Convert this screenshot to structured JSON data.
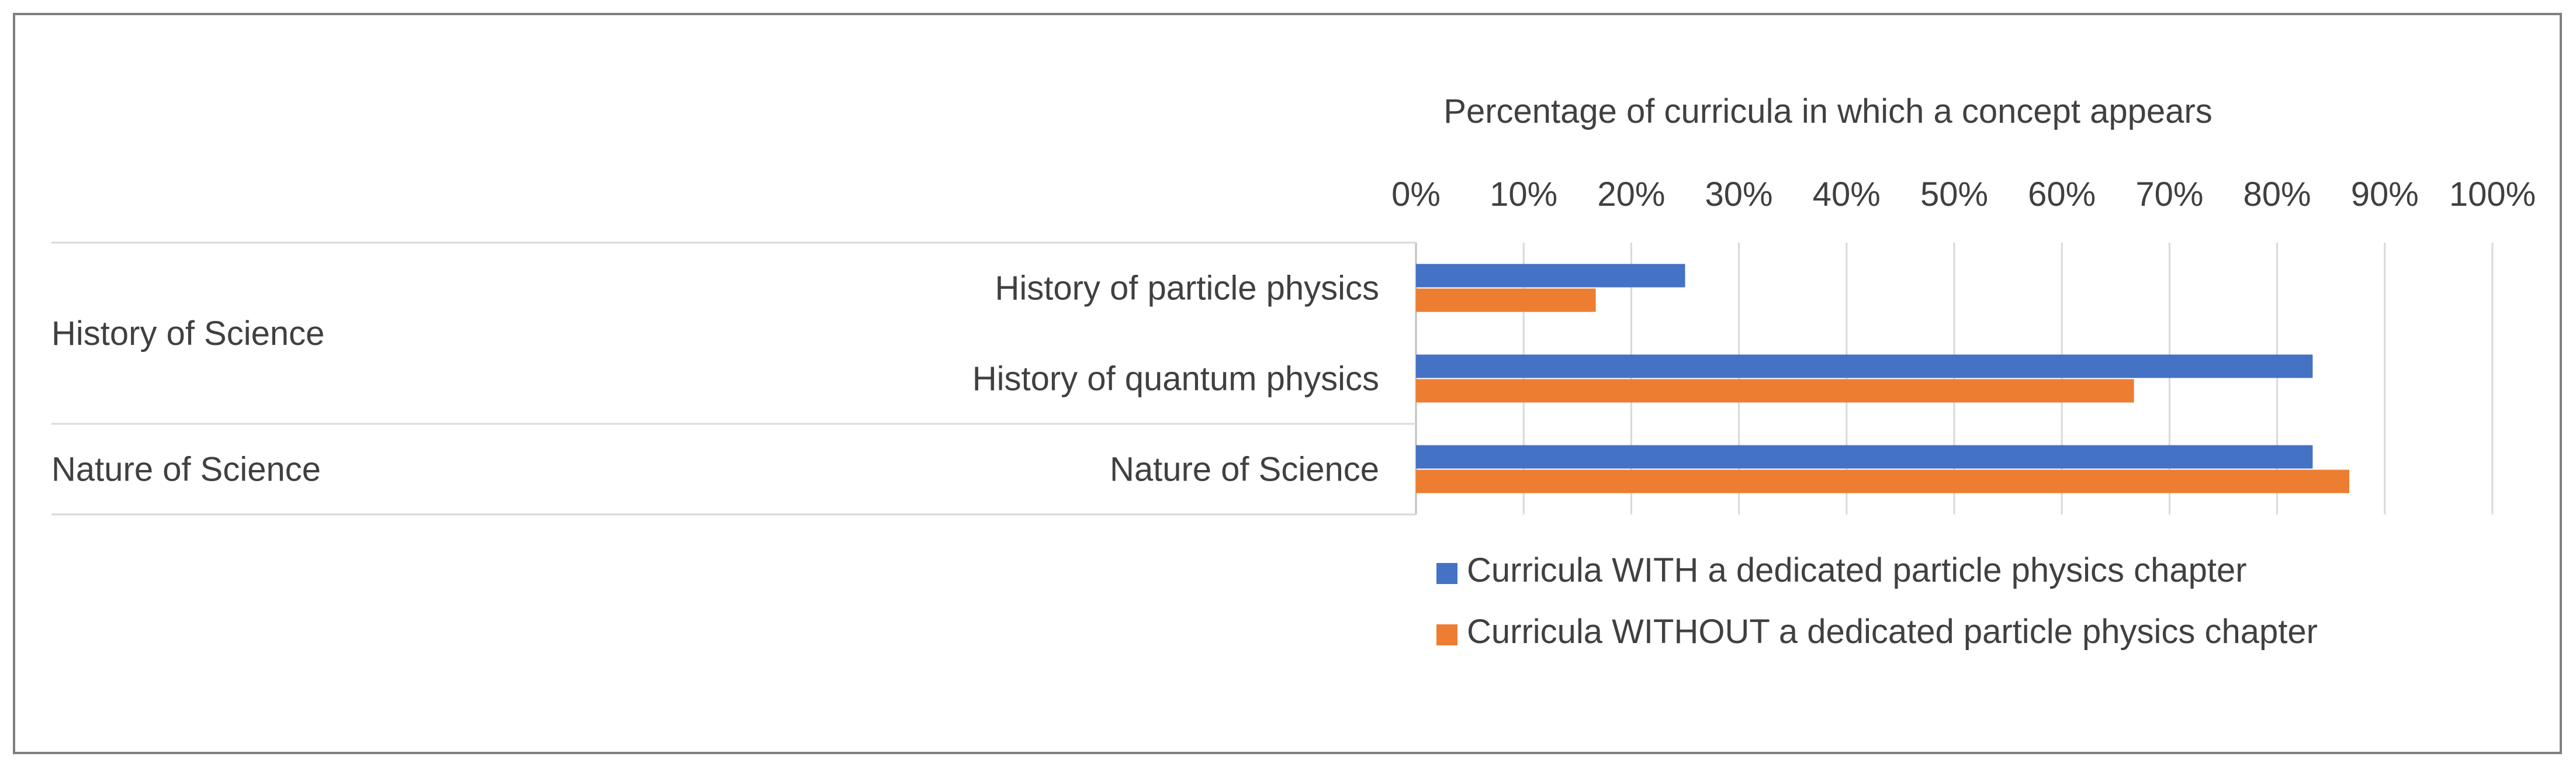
{
  "chart_data": {
    "type": "bar",
    "orientation": "horizontal",
    "title": "",
    "xlabel": "Percentage of curricula in which a concept appears",
    "ylabel": "",
    "xlim": [
      0,
      100
    ],
    "x_ticks": [
      "0%",
      "10%",
      "20%",
      "30%",
      "40%",
      "50%",
      "60%",
      "70%",
      "80%",
      "90%",
      "100%"
    ],
    "grid": true,
    "axis_position": "top",
    "legend_placement": "bottom",
    "groups": [
      {
        "name": "History of Science",
        "categories": [
          "History of particle physics",
          "History of quantum physics"
        ]
      },
      {
        "name": "Nature of Science",
        "categories": [
          "Nature of Science"
        ]
      }
    ],
    "categories": [
      "History of particle physics",
      "History of quantum physics",
      "Nature of Science"
    ],
    "series": [
      {
        "name": "Curricula WITH a dedicated particle physics chapter",
        "color": "#4472c4",
        "values": [
          25,
          83.3,
          83.3
        ]
      },
      {
        "name": "Curricula WITHOUT a dedicated particle physics chapter",
        "color": "#ed7d31",
        "values": [
          16.7,
          66.7,
          86.7
        ]
      }
    ]
  }
}
